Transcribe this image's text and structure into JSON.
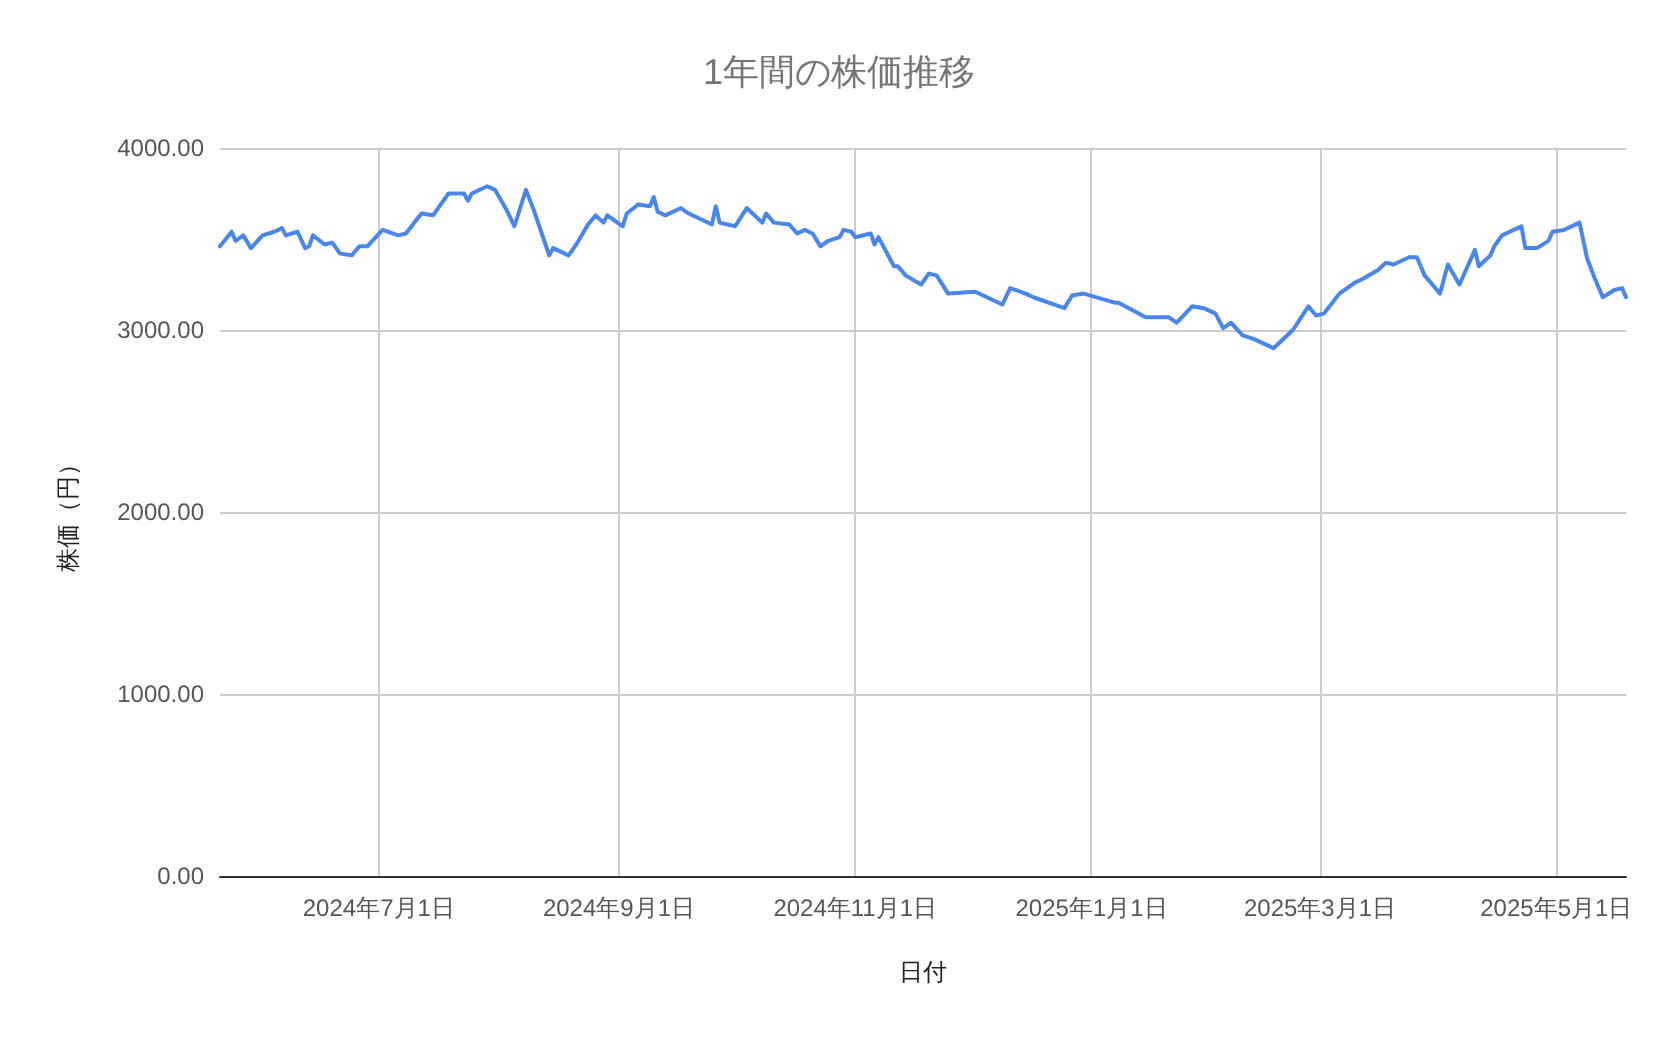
{
  "chart_data": {
    "type": "line",
    "title": "1年間の株価推移",
    "xlabel": "日付",
    "ylabel": "株価（円）",
    "grid": true,
    "marker": "none",
    "line_style": "solid",
    "xlim": [
      "2024-05-21",
      "2025-05-19"
    ],
    "xticks": [
      {
        "value": "2024-07-01",
        "label": "2024年7月1日"
      },
      {
        "value": "2024-09-01",
        "label": "2024年9月1日"
      },
      {
        "value": "2024-11-01",
        "label": "2024年11月1日"
      },
      {
        "value": "2025-01-01",
        "label": "2025年1月1日"
      },
      {
        "value": "2025-03-01",
        "label": "2025年3月1日"
      },
      {
        "value": "2025-05-01",
        "label": "2025年5月1日"
      }
    ],
    "ylim": [
      0,
      4000
    ],
    "yticks": [
      {
        "value": 0,
        "label": "0.00"
      },
      {
        "value": 1000,
        "label": "1000.00"
      },
      {
        "value": 2000,
        "label": "2000.00"
      },
      {
        "value": 3000,
        "label": "3000.00"
      },
      {
        "value": 4000,
        "label": "4000.00"
      }
    ],
    "x": [
      "2024-05-21",
      "2024-05-24",
      "2024-05-25",
      "2024-05-27",
      "2024-05-29",
      "2024-06-01",
      "2024-06-04",
      "2024-06-06",
      "2024-06-07",
      "2024-06-10",
      "2024-06-12",
      "2024-06-13",
      "2024-06-14",
      "2024-06-17",
      "2024-06-19",
      "2024-06-21",
      "2024-06-24",
      "2024-06-26",
      "2024-06-28",
      "2024-07-02",
      "2024-07-06",
      "2024-07-08",
      "2024-07-12",
      "2024-07-15",
      "2024-07-19",
      "2024-07-23",
      "2024-07-24",
      "2024-07-25",
      "2024-07-29",
      "2024-07-31",
      "2024-08-03",
      "2024-08-05",
      "2024-08-08",
      "2024-08-10",
      "2024-08-14",
      "2024-08-15",
      "2024-08-19",
      "2024-08-21",
      "2024-08-24",
      "2024-08-26",
      "2024-08-28",
      "2024-08-29",
      "2024-09-02",
      "2024-09-03",
      "2024-09-06",
      "2024-09-09",
      "2024-09-10",
      "2024-09-11",
      "2024-09-13",
      "2024-09-17",
      "2024-09-19",
      "2024-09-23",
      "2024-09-25",
      "2024-09-26",
      "2024-09-27",
      "2024-10-01",
      "2024-10-04",
      "2024-10-08",
      "2024-10-09",
      "2024-10-11",
      "2024-10-15",
      "2024-10-17",
      "2024-10-19",
      "2024-10-21",
      "2024-10-23",
      "2024-10-25",
      "2024-10-28",
      "2024-10-29",
      "2024-10-31",
      "2024-11-01",
      "2024-11-05",
      "2024-11-06",
      "2024-11-07",
      "2024-11-11",
      "2024-11-12",
      "2024-11-14",
      "2024-11-18",
      "2024-11-20",
      "2024-11-22",
      "2024-11-25",
      "2024-12-02",
      "2024-12-09",
      "2024-12-11",
      "2024-12-15",
      "2024-12-17",
      "2024-12-25",
      "2024-12-27",
      "2024-12-30",
      "2025-01-07",
      "2025-01-08",
      "2025-01-15",
      "2025-01-19",
      "2025-01-21",
      "2025-01-23",
      "2025-01-27",
      "2025-01-30",
      "2025-02-02",
      "2025-02-04",
      "2025-02-06",
      "2025-02-09",
      "2025-02-12",
      "2025-02-17",
      "2025-02-22",
      "2025-02-26",
      "2025-02-28",
      "2025-03-02",
      "2025-03-06",
      "2025-03-10",
      "2025-03-12",
      "2025-03-16",
      "2025-03-18",
      "2025-03-20",
      "2025-03-24",
      "2025-03-26",
      "2025-03-28",
      "2025-03-30",
      "2025-04-01",
      "2025-04-03",
      "2025-04-06",
      "2025-04-10",
      "2025-04-11",
      "2025-04-14",
      "2025-04-15",
      "2025-04-17",
      "2025-04-22",
      "2025-04-23",
      "2025-04-26",
      "2025-04-29",
      "2025-04-30",
      "2025-05-03",
      "2025-05-07",
      "2025-05-09",
      "2025-05-11",
      "2025-05-13",
      "2025-05-16",
      "2025-05-18",
      "2025-05-19"
    ],
    "series": [
      {
        "color": "#4a86e8",
        "values": [
          3460,
          3540,
          3490,
          3520,
          3450,
          3520,
          3540,
          3560,
          3520,
          3540,
          3450,
          3460,
          3520,
          3470,
          3480,
          3420,
          3410,
          3460,
          3460,
          3550,
          3520,
          3530,
          3640,
          3630,
          3750,
          3750,
          3710,
          3750,
          3790,
          3770,
          3660,
          3570,
          3770,
          3660,
          3410,
          3450,
          3410,
          3470,
          3580,
          3630,
          3590,
          3630,
          3570,
          3640,
          3690,
          3680,
          3730,
          3650,
          3630,
          3670,
          3640,
          3600,
          3580,
          3680,
          3590,
          3570,
          3670,
          3590,
          3640,
          3590,
          3580,
          3530,
          3550,
          3530,
          3460,
          3490,
          3510,
          3550,
          3540,
          3510,
          3530,
          3470,
          3510,
          3350,
          3350,
          3300,
          3250,
          3310,
          3300,
          3200,
          3210,
          3140,
          3230,
          3200,
          3180,
          3120,
          3190,
          3200,
          3150,
          3150,
          3070,
          3070,
          3070,
          3040,
          3130,
          3120,
          3090,
          3010,
          3040,
          2970,
          2950,
          2900,
          3000,
          3130,
          3080,
          3090,
          3200,
          3260,
          3280,
          3330,
          3370,
          3360,
          3400,
          3400,
          3300,
          3250,
          3200,
          3360,
          3250,
          3440,
          3350,
          3410,
          3460,
          3520,
          3570,
          3450,
          3450,
          3490,
          3540,
          3550,
          3590,
          3390,
          3280,
          3180,
          3220,
          3230,
          3180
        ]
      }
    ]
  }
}
